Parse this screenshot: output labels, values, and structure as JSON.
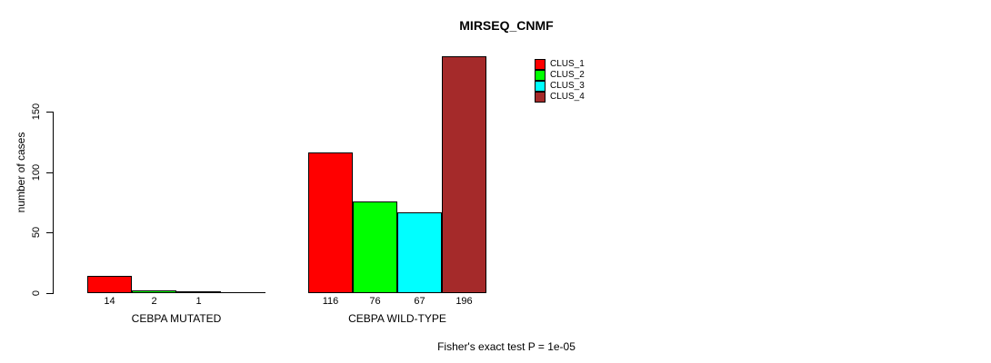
{
  "title": "MIRSEQ_CNMF",
  "annotation": "Fisher's exact test P = 1e-05",
  "y_axis": {
    "label": "number of cases",
    "ticks": [
      0,
      50,
      100,
      150
    ]
  },
  "colors": {
    "clus_1": "#FF0000",
    "clus_2": "#00FF00",
    "clus_3": "#00FFFF",
    "clus_4": "#A52A2A"
  },
  "chart_data": {
    "type": "bar",
    "title": "MIRSEQ_CNMF",
    "xlabel": "",
    "ylabel": "number of cases",
    "ylim": [
      0,
      200
    ],
    "y_ticks": [
      0,
      50,
      100,
      150
    ],
    "grid": false,
    "legend_position": "top-right",
    "categories": [
      "CEBPA MUTATED",
      "CEBPA WILD-TYPE"
    ],
    "series": [
      {
        "name": "CLUS_1",
        "color": "#FF0000",
        "values": [
          14,
          116
        ]
      },
      {
        "name": "CLUS_2",
        "color": "#00FF00",
        "values": [
          2,
          76
        ]
      },
      {
        "name": "CLUS_3",
        "color": "#00FFFF",
        "values": [
          1,
          67
        ]
      },
      {
        "name": "CLUS_4",
        "color": "#A52A2A",
        "values": [
          0,
          196
        ]
      }
    ],
    "bar_value_labels": [
      [
        "14",
        "2",
        "1",
        ""
      ],
      [
        "116",
        "76",
        "67",
        "196"
      ]
    ],
    "annotation": "Fisher's exact test P = 1e-05"
  }
}
